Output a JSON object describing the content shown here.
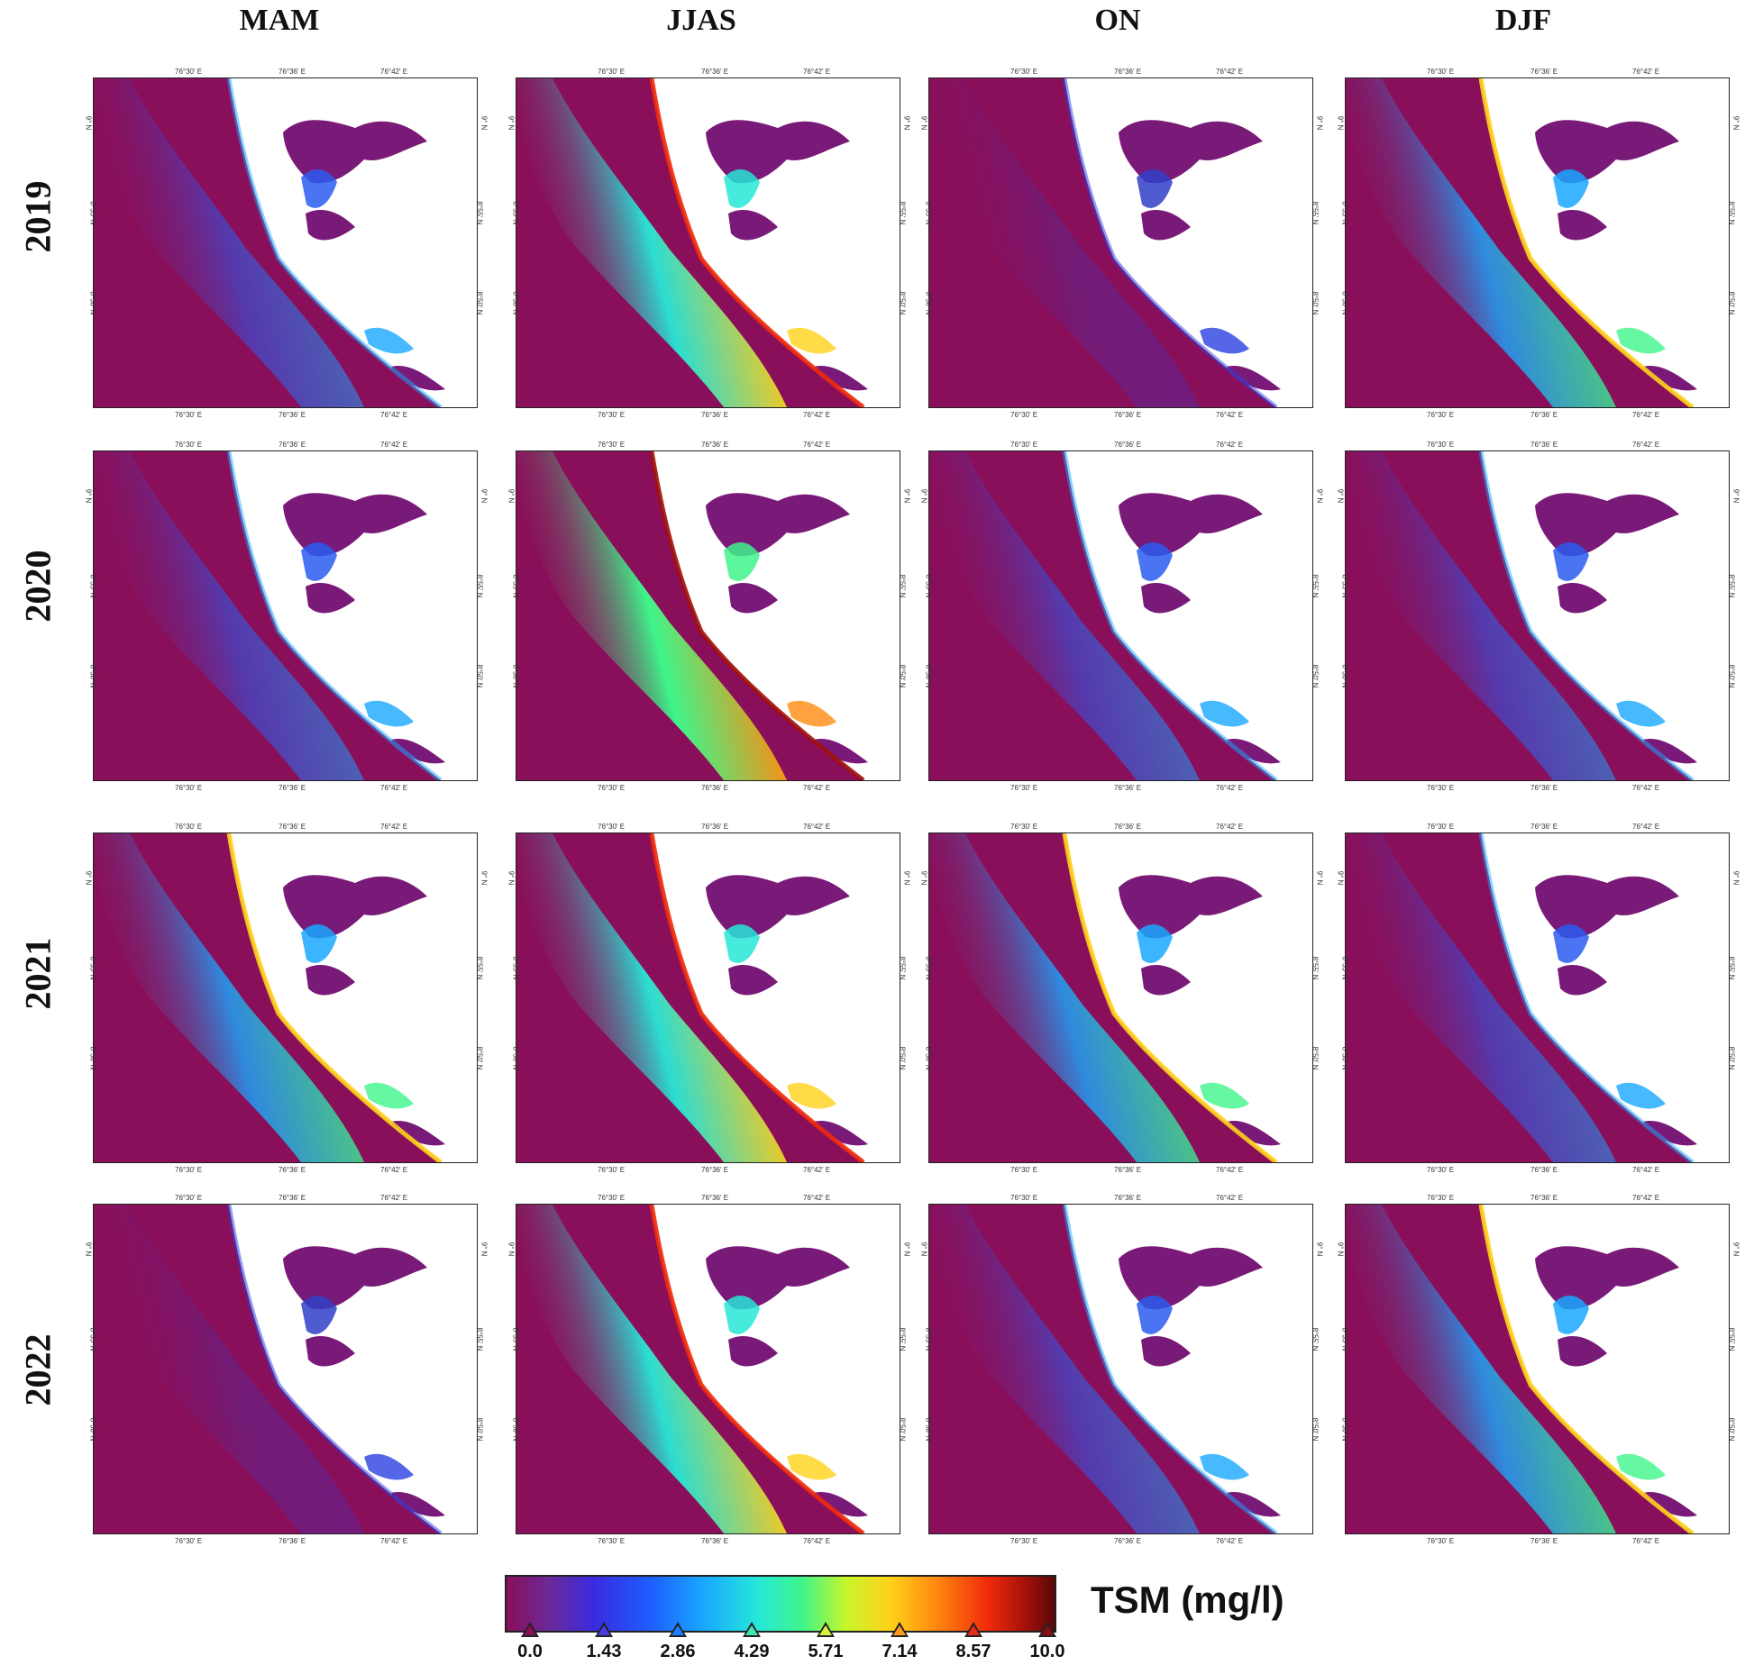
{
  "seasons": [
    "MAM",
    "JJAS",
    "ON",
    "DJF"
  ],
  "years": [
    "2019",
    "2020",
    "2021",
    "2022"
  ],
  "ticks": {
    "lon": [
      "76°30' E",
      "76°36' E",
      "76°42' E"
    ],
    "lat": [
      "9° N",
      "8°55' N",
      "8°50' N"
    ]
  },
  "colorbar": {
    "title": "TSM (mg/l)",
    "labels": [
      "0.0",
      "1.43",
      "2.86",
      "4.29",
      "5.71",
      "7.14",
      "8.57",
      "10.0"
    ],
    "mark_colors": [
      "#8a0f5a",
      "#4a3ae0",
      "#1e7cff",
      "#40e8b0",
      "#d8f040",
      "#ff9a20",
      "#e82a1a",
      "#8a1010"
    ],
    "range": [
      0,
      10
    ]
  },
  "colors": {
    "sea_low": "#8a0f5a",
    "land": "#ffffff",
    "lagoon": "#7a1a78"
  },
  "panels": [
    {
      "year": "2019",
      "season": "MAM",
      "plume": "low"
    },
    {
      "year": "2019",
      "season": "JJAS",
      "plume": "high"
    },
    {
      "year": "2019",
      "season": "ON",
      "plume": "minimal"
    },
    {
      "year": "2019",
      "season": "DJF",
      "plume": "medium"
    },
    {
      "year": "2020",
      "season": "MAM",
      "plume": "low"
    },
    {
      "year": "2020",
      "season": "JJAS",
      "plume": "very-high"
    },
    {
      "year": "2020",
      "season": "ON",
      "plume": "low"
    },
    {
      "year": "2020",
      "season": "DJF",
      "plume": "low"
    },
    {
      "year": "2021",
      "season": "MAM",
      "plume": "medium"
    },
    {
      "year": "2021",
      "season": "JJAS",
      "plume": "high"
    },
    {
      "year": "2021",
      "season": "ON",
      "plume": "medium"
    },
    {
      "year": "2021",
      "season": "DJF",
      "plume": "low"
    },
    {
      "year": "2022",
      "season": "MAM",
      "plume": "minimal"
    },
    {
      "year": "2022",
      "season": "JJAS",
      "plume": "high"
    },
    {
      "year": "2022",
      "season": "ON",
      "plume": "low"
    },
    {
      "year": "2022",
      "season": "DJF",
      "plume": "medium"
    }
  ]
}
